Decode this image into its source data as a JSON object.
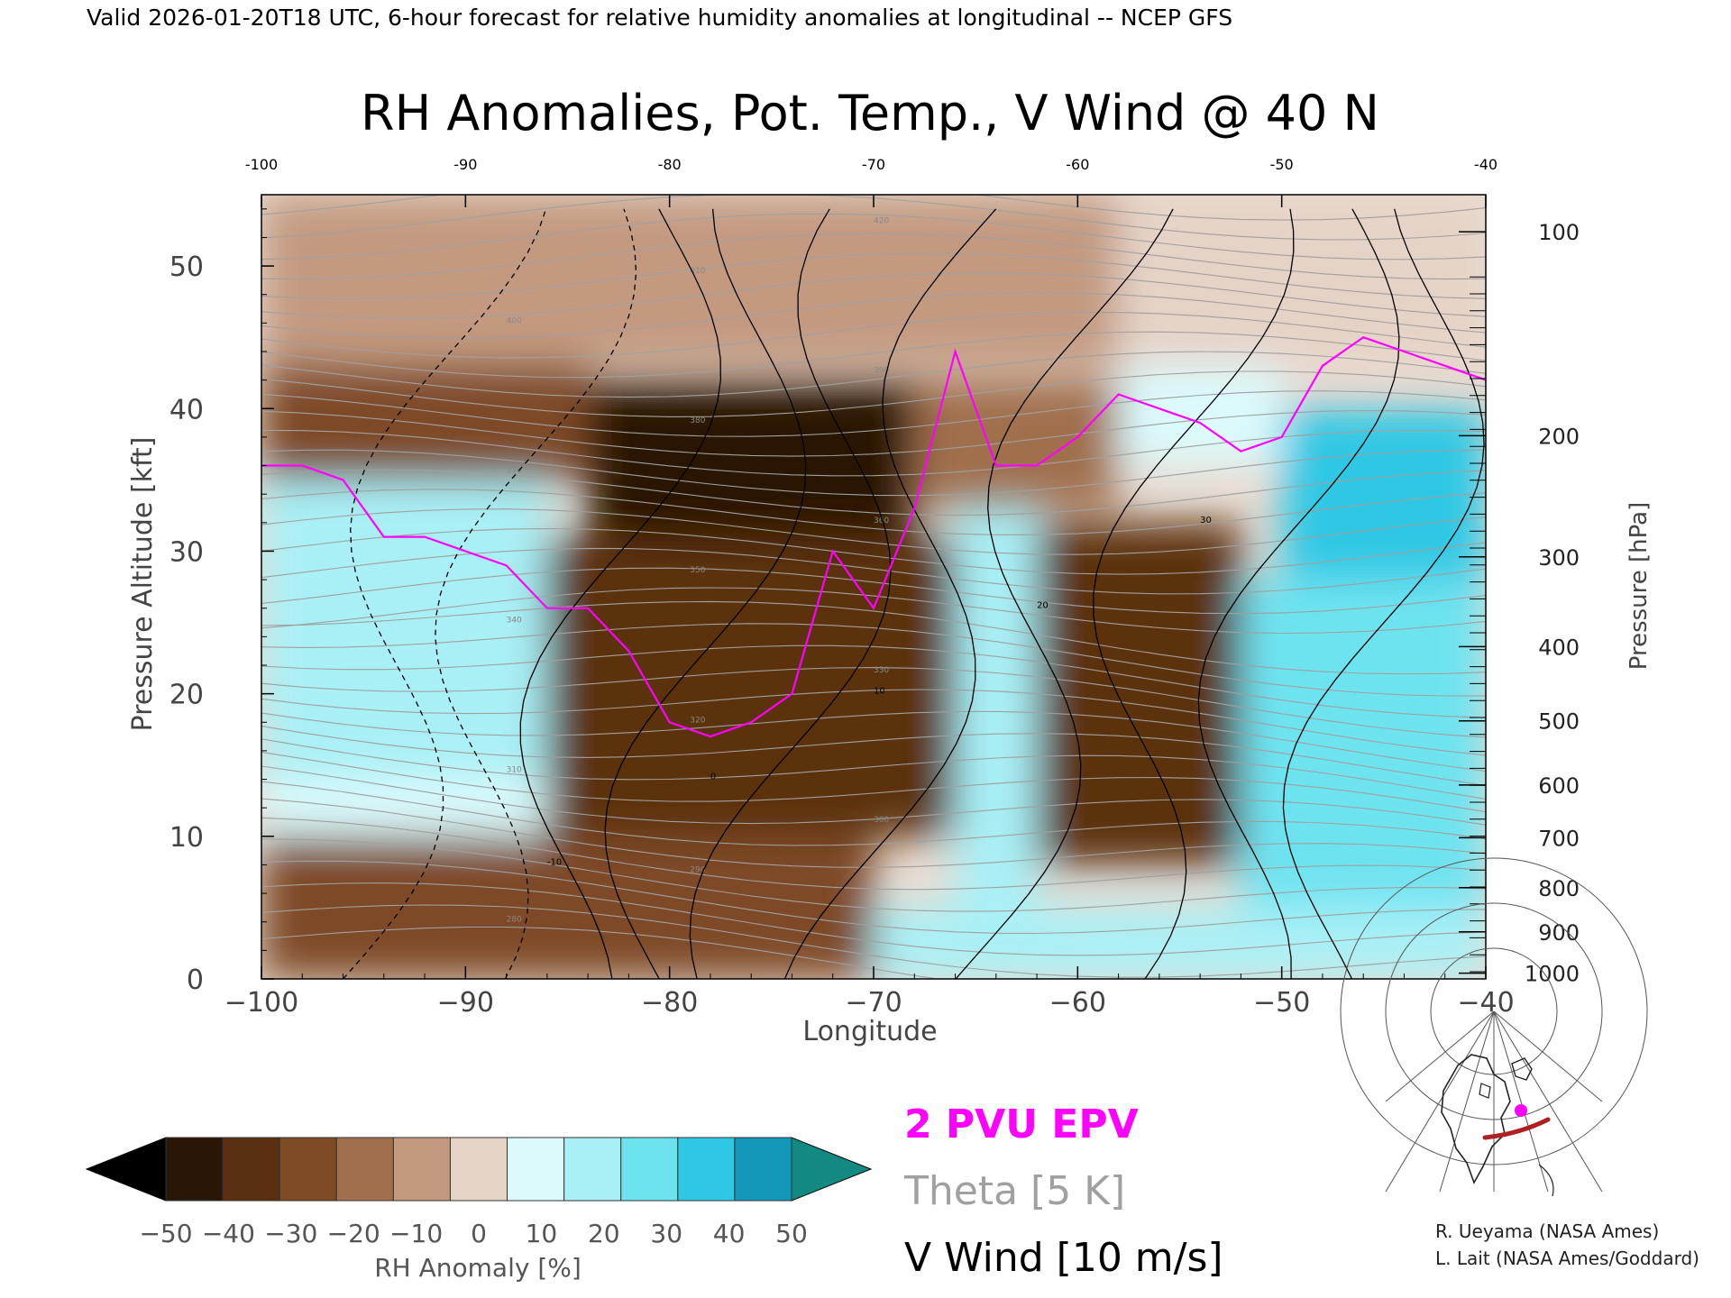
{
  "header": {
    "valid_line": "Valid 2026-01-20T18 UTC, 6-hour forecast for relative humidity anomalies at longitudinal -- NCEP GFS"
  },
  "chart_data": {
    "type": "heatmap",
    "title": "RH Anomalies, Pot. Temp., V Wind @ 40 N",
    "xlabel": "Longitude",
    "ylabel_left": "Pressure Altitude [kft]",
    "ylabel_right": "Pressure [hPa]",
    "xlim": [
      -100,
      -40
    ],
    "ylim": [
      0,
      55
    ],
    "x_ticks": [
      -100,
      -90,
      -80,
      -70,
      -60,
      -50,
      -40
    ],
    "x_tick_labels": [
      "−100",
      "−90",
      "−80",
      "−70",
      "−60",
      "−50",
      "−40"
    ],
    "top_tick_labels": [
      "-100",
      "-90",
      "-80",
      "-70",
      "-60",
      "-50",
      "-40"
    ],
    "y_ticks": [
      0,
      10,
      20,
      30,
      40,
      50
    ],
    "pressure_ticks": [
      {
        "label": "100",
        "kft": 52.4
      },
      {
        "label": "200",
        "kft": 38.1
      },
      {
        "label": "300",
        "kft": 29.6
      },
      {
        "label": "400",
        "kft": 23.3
      },
      {
        "label": "500",
        "kft": 18.1
      },
      {
        "label": "600",
        "kft": 13.6
      },
      {
        "label": "700",
        "kft": 9.9
      },
      {
        "label": "800",
        "kft": 6.4
      },
      {
        "label": "900",
        "kft": 3.3
      },
      {
        "label": "1000",
        "kft": 0.4
      }
    ],
    "rh_cells": [
      {
        "x": [
          -100,
          -85
        ],
        "y": [
          43,
          55
        ],
        "v": -10
      },
      {
        "x": [
          -85,
          -70
        ],
        "y": [
          43,
          55
        ],
        "v": -10
      },
      {
        "x": [
          -70,
          -58
        ],
        "y": [
          43,
          55
        ],
        "v": -8
      },
      {
        "x": [
          -58,
          -40
        ],
        "y": [
          43,
          55
        ],
        "v": 5
      },
      {
        "x": [
          -100,
          -84
        ],
        "y": [
          35,
          43
        ],
        "v": -30
      },
      {
        "x": [
          -84,
          -68
        ],
        "y": [
          31,
          42
        ],
        "v": -45
      },
      {
        "x": [
          -68,
          -58
        ],
        "y": [
          33,
          42
        ],
        "v": -15
      },
      {
        "x": [
          -58,
          -50
        ],
        "y": [
          36,
          43
        ],
        "v": 10
      },
      {
        "x": [
          -50,
          -40
        ],
        "y": [
          28,
          40
        ],
        "v": 40
      },
      {
        "x": [
          -100,
          -86
        ],
        "y": [
          14,
          35
        ],
        "v": 25
      },
      {
        "x": [
          -100,
          -86
        ],
        "y": [
          9,
          14
        ],
        "v": 10
      },
      {
        "x": [
          -86,
          -66
        ],
        "y": [
          10,
          31
        ],
        "v": -40
      },
      {
        "x": [
          -66,
          -62
        ],
        "y": [
          5,
          33
        ],
        "v": 25
      },
      {
        "x": [
          -62,
          -52
        ],
        "y": [
          8,
          32
        ],
        "v": -40
      },
      {
        "x": [
          -52,
          -40
        ],
        "y": [
          5,
          28
        ],
        "v": 30
      },
      {
        "x": [
          -100,
          -70
        ],
        "y": [
          0,
          10
        ],
        "v": -30
      },
      {
        "x": [
          -70,
          -40
        ],
        "y": [
          0,
          5
        ],
        "v": 20
      }
    ],
    "colorbar": {
      "label": "RH Anomaly [%]",
      "tick_values": [
        -50,
        -40,
        -30,
        -20,
        -10,
        0,
        10,
        20,
        30,
        40,
        50
      ],
      "tick_labels": [
        "−50",
        "−40",
        "−30",
        "−20",
        "−10",
        "0",
        "10",
        "20",
        "30",
        "40",
        "50"
      ],
      "colors": [
        "#2a1606",
        "#5b3010",
        "#7e4a26",
        "#a06f4d",
        "#c39a80",
        "#e6d3c8",
        "#dcfafc",
        "#a9f0f6",
        "#6ee3f0",
        "#2fc8e4",
        "#1297b8"
      ],
      "under_color": "#000000",
      "over_color": "#128a82"
    },
    "series": [
      {
        "name": "2 PVU EPV",
        "color": "#ff00ff",
        "x": [
          -100,
          -98,
          -96,
          -94,
          -92,
          -90,
          -88,
          -86,
          -84,
          -82,
          -80,
          -78,
          -76,
          -74,
          -72,
          -70,
          -68,
          -66,
          -64,
          -62,
          -60,
          -58,
          -56,
          -54,
          -52,
          -50,
          -48,
          -46,
          -44,
          -42,
          -40
        ],
        "y": [
          36,
          36,
          35,
          31,
          31,
          30,
          29,
          26,
          26,
          23,
          18,
          17,
          18,
          20,
          30,
          26,
          33,
          44,
          36,
          36,
          38,
          41,
          40,
          39,
          37,
          38,
          43,
          45,
          44,
          43,
          42
        ]
      },
      {
        "name": "Theta [5 K]",
        "color": "#a0a0a0",
        "levels": [
          280,
          290,
          300,
          310,
          320,
          330,
          340,
          350,
          360,
          370,
          380,
          390,
          400,
          410,
          420
        ]
      },
      {
        "name": "V Wind [10 m/s]",
        "color": "#000000",
        "levels": [
          -10,
          0,
          10,
          20,
          30
        ]
      }
    ]
  },
  "legend": {
    "epv": "2 PVU EPV",
    "theta": "Theta [5 K]",
    "vwind": "V Wind [10 m/s]"
  },
  "credits": {
    "line1": "R. Ueyama (NASA Ames)",
    "line2": "L. Lait (NASA Ames/Goddard)"
  },
  "colors": {
    "epv": "#ff00ff",
    "theta": "#a0a0a0",
    "vwind": "#000000",
    "locator_track": "#b02020",
    "locator_point": "#ff00ff"
  },
  "inset": {
    "name": "locator-map-icon",
    "lon_range": [
      -100,
      -40
    ],
    "lat": 40
  }
}
